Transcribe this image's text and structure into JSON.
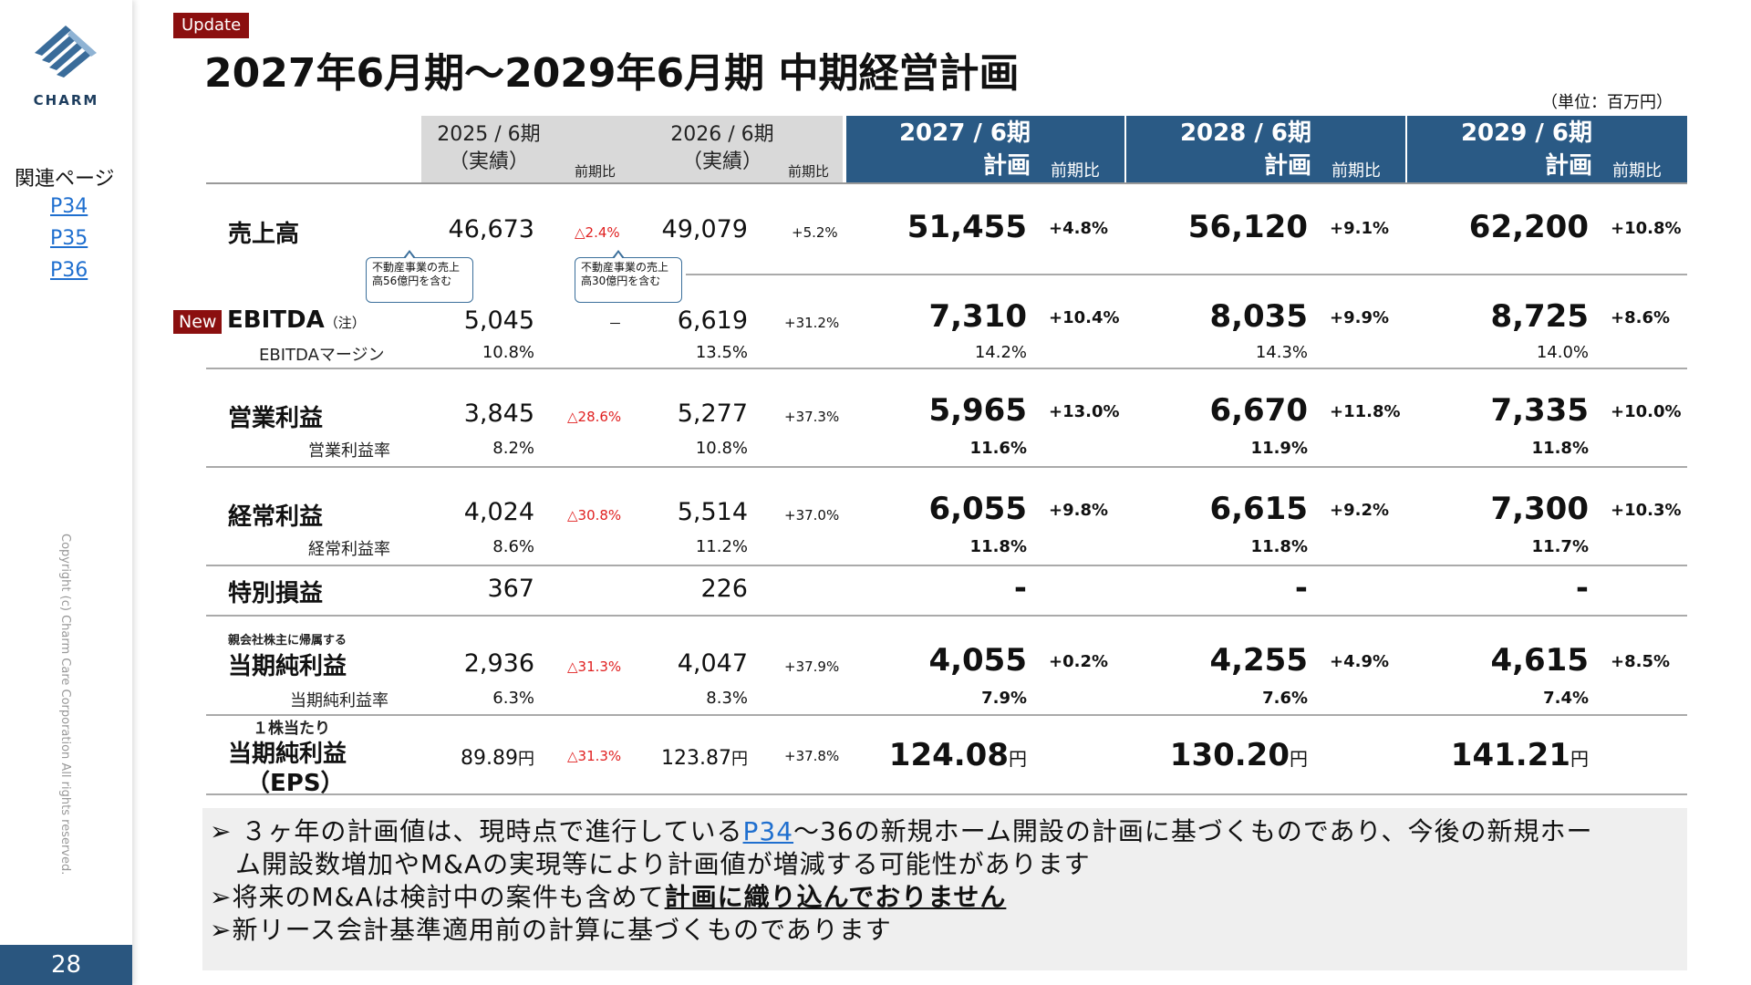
{
  "sidebar": {
    "logo_text": "CHARM",
    "related_label": "関連ページ",
    "links": [
      "P34",
      "P35",
      "P36"
    ],
    "copyright": "Copyright (c) Charm Care Corporation All rights reserved.",
    "page_number": "28"
  },
  "header": {
    "badge": "Update",
    "title": "2027年6月期～2029年6月期 中期経営計画",
    "unit": "（単位：百万円）"
  },
  "table": {
    "columns": {
      "fy2025": {
        "line1": "2025 / 6期",
        "line2": "（実績）"
      },
      "fy2026": {
        "line1": "2026 / 6期",
        "line2": "（実績）"
      },
      "yoy": "前期比",
      "fy2027": {
        "line1": "2027 / 6期",
        "line2": "計画"
      },
      "fy2028": {
        "line1": "2028 / 6期",
        "line2": "計画"
      },
      "fy2029": {
        "line1": "2029 / 6期",
        "line2": "計画"
      }
    },
    "new_badge": "New",
    "ebitda_note": "（注）",
    "callouts": {
      "c2025": "不動産事業の売上高56億円を含む",
      "c2026": "不動産事業の売上高30億円を含む"
    },
    "rows": {
      "sales": {
        "label": "売上高",
        "v2025": "46,673",
        "c2025": "△2.4%",
        "v2026": "49,079",
        "c2026": "+5.2%",
        "v2027": "51,455",
        "c2027": "+4.8%",
        "v2028": "56,120",
        "c2028": "+9.1%",
        "v2029": "62,200",
        "c2029": "+10.8%"
      },
      "ebitda": {
        "label": "EBITDA",
        "v2025": "5,045",
        "c2025": "－",
        "v2026": "6,619",
        "c2026": "+31.2%",
        "v2027": "7,310",
        "c2027": "+10.4%",
        "v2028": "8,035",
        "c2028": "+9.9%",
        "v2029": "8,725",
        "c2029": "+8.6%",
        "sub_label": "EBITDAマージン",
        "s2025": "10.8%",
        "s2026": "13.5%",
        "s2027": "14.2%",
        "s2028": "14.3%",
        "s2029": "14.0%"
      },
      "op": {
        "label": "営業利益",
        "v2025": "3,845",
        "c2025": "△28.6%",
        "v2026": "5,277",
        "c2026": "+37.3%",
        "v2027": "5,965",
        "c2027": "+13.0%",
        "v2028": "6,670",
        "c2028": "+11.8%",
        "v2029": "7,335",
        "c2029": "+10.0%",
        "sub_label": "営業利益率",
        "s2025": "8.2%",
        "s2026": "10.8%",
        "s2027": "11.6%",
        "s2028": "11.9%",
        "s2029": "11.8%"
      },
      "ord": {
        "label": "経常利益",
        "v2025": "4,024",
        "c2025": "△30.8%",
        "v2026": "5,514",
        "c2026": "+37.0%",
        "v2027": "6,055",
        "c2027": "+9.8%",
        "v2028": "6,615",
        "c2028": "+9.2%",
        "v2029": "7,300",
        "c2029": "+10.3%",
        "sub_label": "経常利益率",
        "s2025": "8.6%",
        "s2026": "11.2%",
        "s2027": "11.8%",
        "s2028": "11.8%",
        "s2029": "11.7%"
      },
      "special": {
        "label": "特別損益",
        "v2025": "367",
        "v2026": "226",
        "v2027": "-",
        "v2028": "-",
        "v2029": "-"
      },
      "net": {
        "pre_label": "親会社株主に帰属する",
        "label": "当期純利益",
        "v2025": "2,936",
        "c2025": "△31.3%",
        "v2026": "4,047",
        "c2026": "+37.9%",
        "v2027": "4,055",
        "c2027": "+0.2%",
        "v2028": "4,255",
        "c2028": "+4.9%",
        "v2029": "4,615",
        "c2029": "+8.5%",
        "sub_label": "当期純利益率",
        "s2025": "6.3%",
        "s2026": "8.3%",
        "s2027": "7.9%",
        "s2028": "7.6%",
        "s2029": "7.4%"
      },
      "eps": {
        "pre_label": "１株当たり",
        "label": "当期純利益",
        "label2": "（EPS）",
        "v2025": "89.89",
        "c2025": "△31.3%",
        "v2026": "123.87",
        "c2026": "+37.8%",
        "v2027": "124.08",
        "v2028": "130.20",
        "v2029": "141.21",
        "yen": "円"
      }
    }
  },
  "notes": {
    "n1_a": "➢ ３ヶ年の計画値は、現時点で進行している",
    "n1_link": "P34",
    "n1_b": "～36の新規ホーム開設の計画に基づくものであり、今後の新規ホー",
    "n1_c": "ム開設数増加やM&Aの実現等により計画値が増減する可能性があります",
    "n2_a": "➢将来のM&Aは検討中の案件も含めて",
    "n2_b": "計画に織り込んでおりません",
    "n3": "➢新リース会計基準適用前の計算に基づくものであります"
  }
}
